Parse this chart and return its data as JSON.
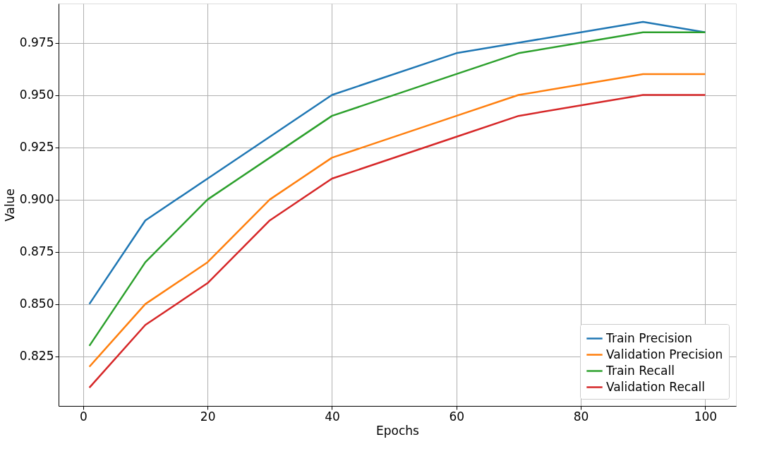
{
  "chart_data": {
    "type": "line",
    "xlabel": "Epochs",
    "ylabel": "Value",
    "x": [
      1,
      10,
      20,
      30,
      40,
      60,
      70,
      80,
      90,
      100
    ],
    "series": [
      {
        "name": "Train Precision",
        "color": "#1f77b4",
        "values": [
          0.85,
          0.89,
          0.91,
          0.93,
          0.95,
          0.97,
          0.975,
          0.98,
          0.985,
          0.98
        ]
      },
      {
        "name": "Validation Precision",
        "color": "#ff7f0e",
        "values": [
          0.82,
          0.85,
          0.87,
          0.9,
          0.92,
          0.94,
          0.95,
          0.955,
          0.96,
          0.96
        ]
      },
      {
        "name": "Train Recall",
        "color": "#2ca02c",
        "values": [
          0.83,
          0.87,
          0.9,
          0.92,
          0.94,
          0.96,
          0.97,
          0.975,
          0.98,
          0.98
        ]
      },
      {
        "name": "Validation Recall",
        "color": "#d62728",
        "values": [
          0.81,
          0.84,
          0.86,
          0.89,
          0.91,
          0.93,
          0.94,
          0.945,
          0.95,
          0.95
        ]
      }
    ],
    "xlim": [
      -3.95,
      104.95
    ],
    "xticks": [
      0,
      20,
      40,
      60,
      80,
      100
    ],
    "ylim": [
      0.80125,
      0.99375
    ],
    "yticks": [
      {
        "value": 0.825,
        "label": "0.825"
      },
      {
        "value": 0.85,
        "label": "0.850"
      },
      {
        "value": 0.875,
        "label": "0.875"
      },
      {
        "value": 0.9,
        "label": "0.900"
      },
      {
        "value": 0.925,
        "label": "0.925"
      },
      {
        "value": 0.95,
        "label": "0.950"
      },
      {
        "value": 0.975,
        "label": "0.975"
      }
    ],
    "grid": true,
    "legend": "bottom right",
    "marker": "none",
    "line_style": "solid"
  }
}
